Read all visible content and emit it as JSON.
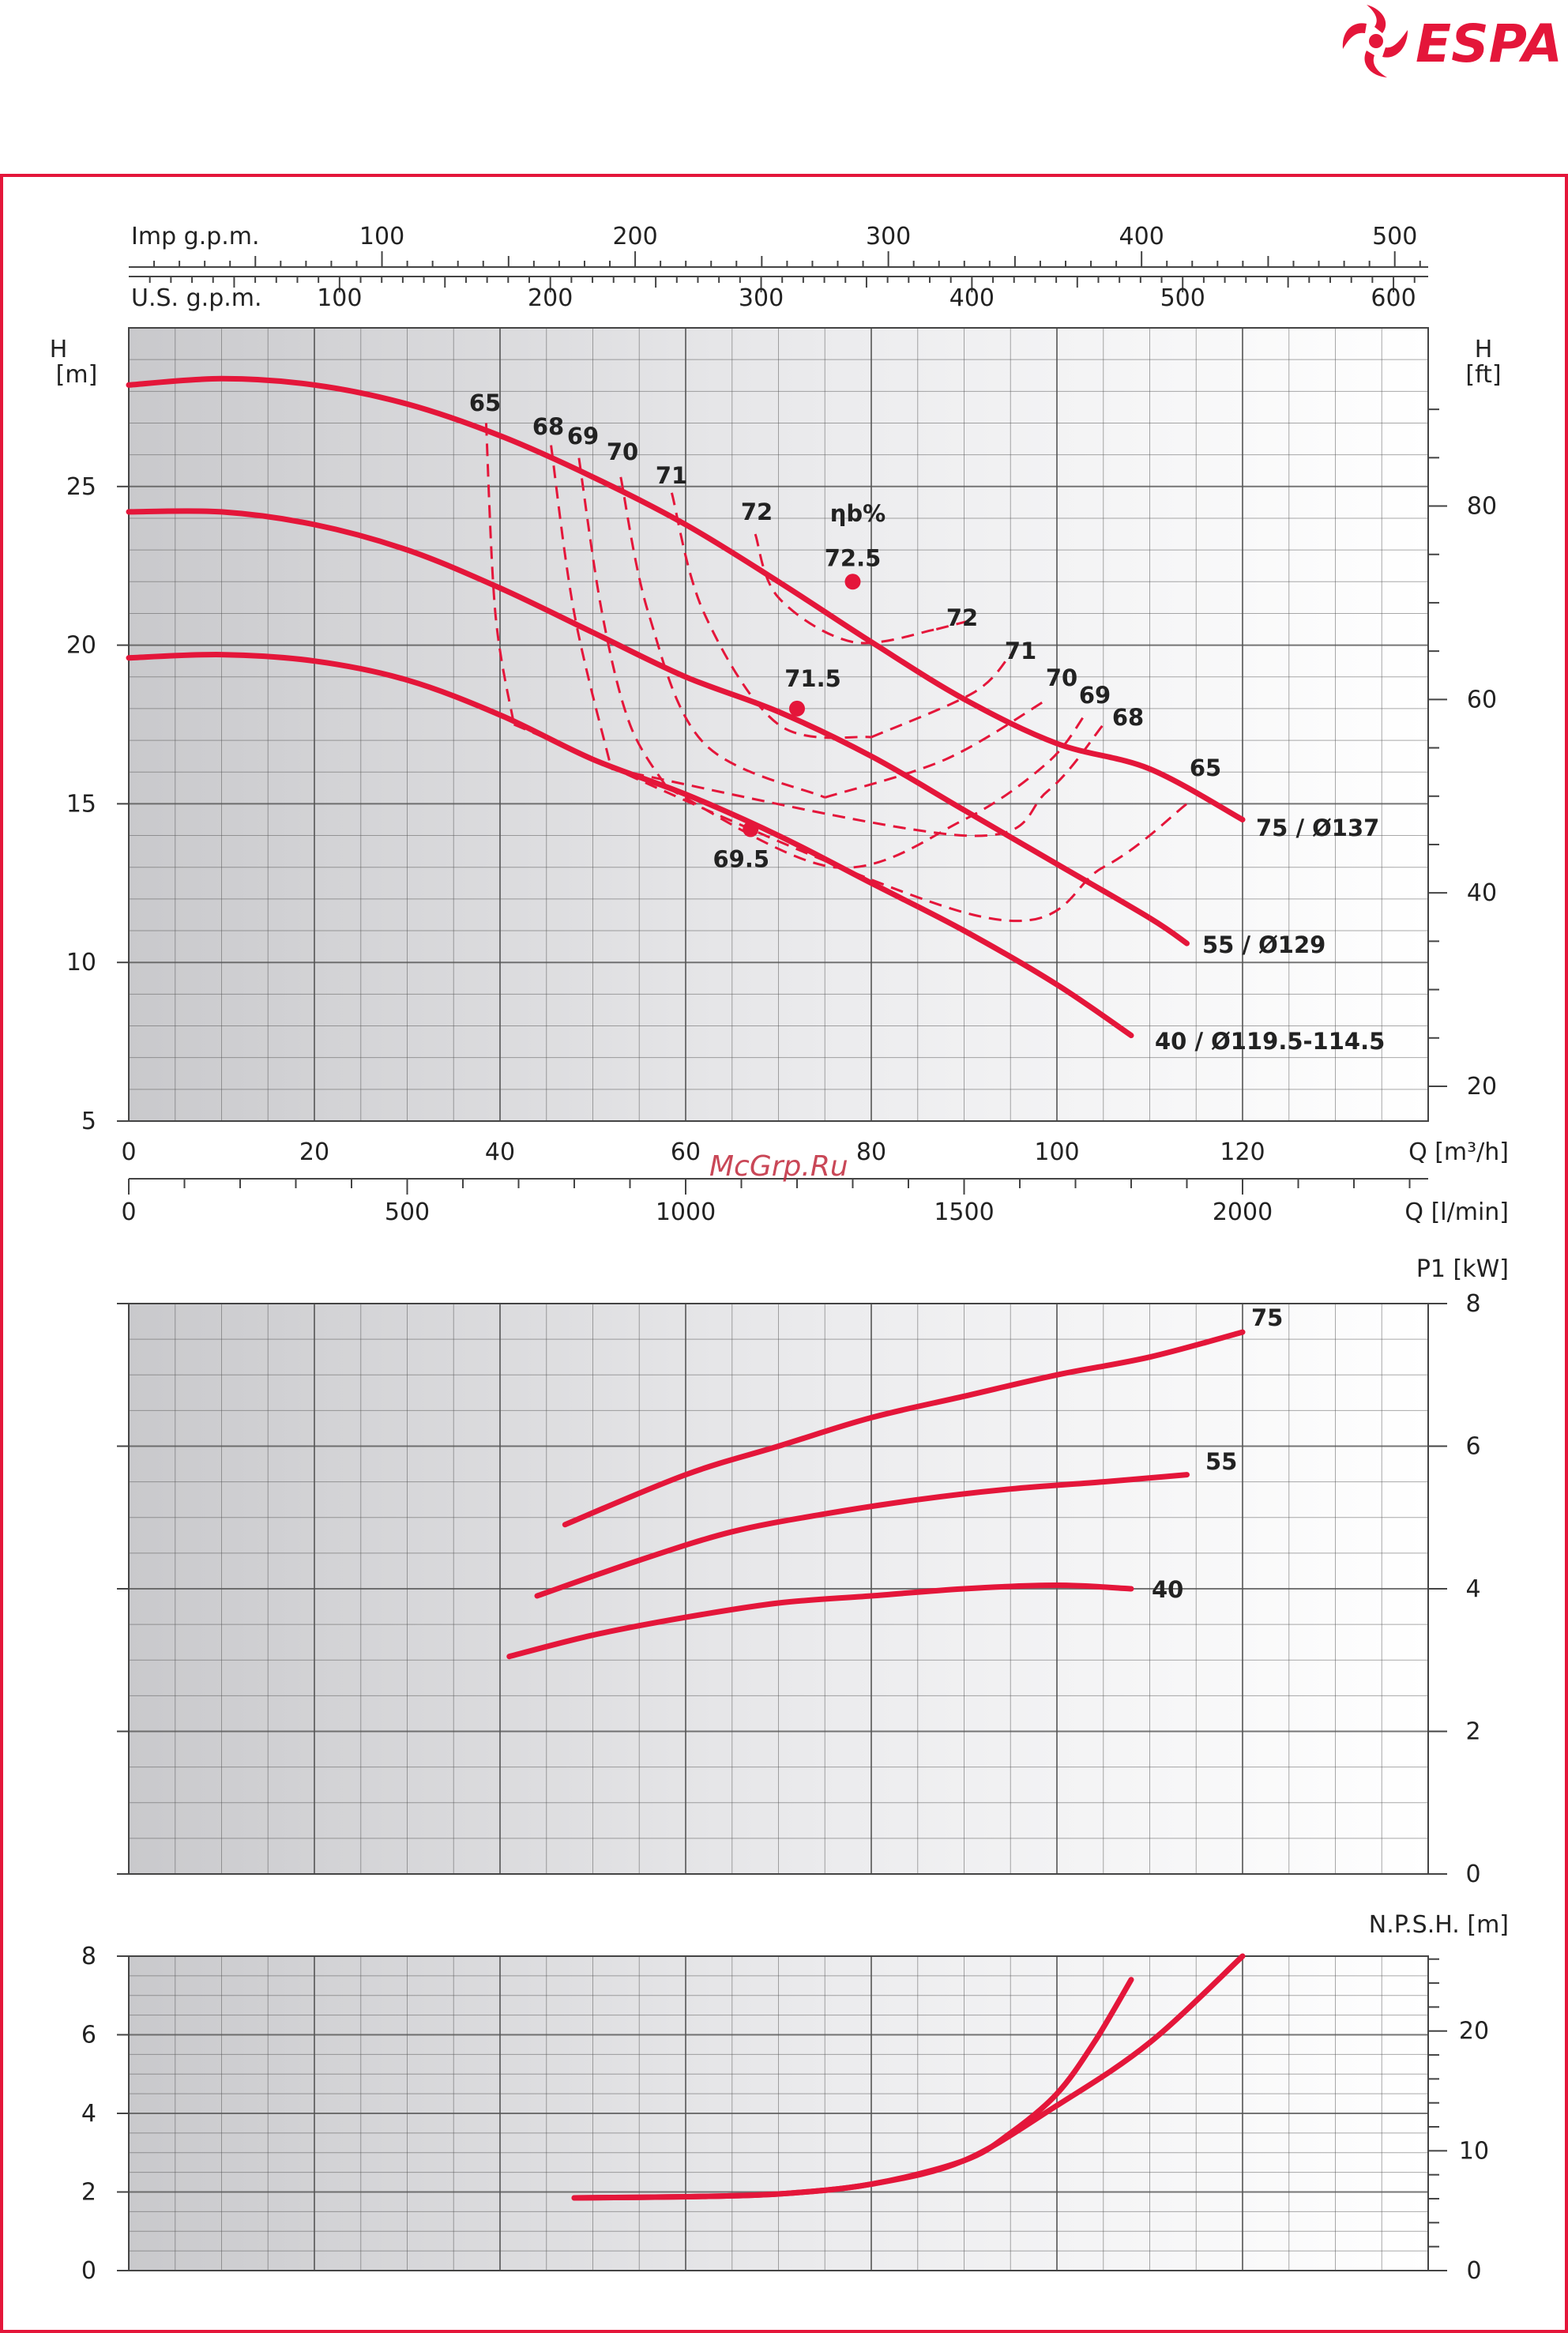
{
  "brand": {
    "name": "ESPA",
    "color": "#e4163a"
  },
  "watermark": "McGrp.Ru",
  "colors": {
    "curve": "#e4163a",
    "frame": "#e4163a",
    "grid": "#555555"
  },
  "chart_data": [
    {
      "type": "line",
      "title": "",
      "xlabel": "Q [m³/h]",
      "ylabel": "H [m]",
      "ylabel_right": "H [ft]",
      "efficiency_label": "ηb%",
      "xlim": [
        0,
        140
      ],
      "ylim": [
        5,
        30
      ],
      "grid": true,
      "x_ticks": [
        "0",
        "20",
        "40",
        "60",
        "80",
        "100",
        "120"
      ],
      "y_ticks": [
        "5",
        "10",
        "15",
        "20",
        "25"
      ],
      "y_right_ticks": [
        "20",
        "40",
        "60",
        "80"
      ],
      "secondary_axes": [
        {
          "label": "Imp g.p.m.",
          "ticks": [
            "100",
            "200",
            "300",
            "400",
            "500"
          ]
        },
        {
          "label": "U.S. g.p.m.",
          "ticks": [
            "100",
            "200",
            "300",
            "400",
            "500",
            "600"
          ]
        },
        {
          "label": "Q [l/min]",
          "ticks": [
            "0",
            "500",
            "1000",
            "1500",
            "2000"
          ]
        }
      ],
      "series": [
        {
          "name": "75 / Ø137",
          "x": [
            0,
            10,
            20,
            30,
            40,
            50,
            60,
            70,
            80,
            90,
            100,
            110,
            120
          ],
          "y": [
            28.2,
            28.4,
            28.2,
            27.6,
            26.6,
            25.3,
            23.8,
            22.0,
            20.1,
            18.3,
            16.9,
            16.1,
            14.5
          ]
        },
        {
          "name": "55 / Ø129",
          "x": [
            0,
            10,
            20,
            30,
            40,
            50,
            60,
            70,
            80,
            90,
            100,
            110,
            114
          ],
          "y": [
            24.2,
            24.2,
            23.8,
            23.0,
            21.8,
            20.4,
            19.0,
            17.9,
            16.5,
            14.8,
            13.1,
            11.4,
            10.6
          ]
        },
        {
          "name": "40 / Ø119.5-114.5",
          "x": [
            0,
            10,
            20,
            30,
            40,
            50,
            60,
            70,
            80,
            90,
            100,
            108
          ],
          "y": [
            19.6,
            19.7,
            19.5,
            18.9,
            17.8,
            16.4,
            15.3,
            14.0,
            12.5,
            11.0,
            9.3,
            7.7
          ]
        }
      ],
      "efficiency_points": [
        {
          "label": "72.5",
          "x": 78,
          "y": 22.0
        },
        {
          "label": "71.5",
          "x": 72,
          "y": 18.0
        },
        {
          "label": "69.5",
          "x": 67,
          "y": 14.2
        }
      ],
      "efficiency_contours": [
        {
          "label": "65",
          "points": [
            [
              38.5,
              27.0
            ],
            [
              39.5,
              21.0
            ],
            [
              41.5,
              17.5
            ]
          ],
          "points_right": [
            [
              91,
              11.5
            ],
            [
              105,
              13.0
            ],
            [
              114,
              15.0
            ]
          ]
        },
        {
          "label": "68",
          "points": [
            [
              45.5,
              26.3
            ],
            [
              48,
              21
            ],
            [
              52,
              16.1
            ]
          ],
          "points_right": [
            [
              90,
              14.0
            ],
            [
              99,
              15.4
            ],
            [
              105,
              17.5
            ]
          ]
        },
        {
          "label": "69",
          "points": [
            [
              48.5,
              25.9
            ],
            [
              51,
              21
            ],
            [
              54,
              17.5
            ],
            [
              58,
              15.5
            ]
          ],
          "points_right": [
            [
              76,
              13
            ],
            [
              90,
              14.5
            ],
            [
              99,
              16.3
            ],
            [
              103,
              17.8
            ]
          ]
        },
        {
          "label": "70",
          "points": [
            [
              53,
              25.3
            ],
            [
              56,
              21
            ],
            [
              62,
              16.9
            ],
            [
              75,
              15.2
            ]
          ],
          "points_right": [
            [
              88,
              16.4
            ],
            [
              99,
              18.3
            ]
          ]
        },
        {
          "label": "71",
          "points": [
            [
              58.5,
              24.8
            ],
            [
              62,
              21
            ],
            [
              70,
              17.5
            ],
            [
              80,
              17.1
            ]
          ],
          "points_right": [
            [
              91,
              18.5
            ],
            [
              95,
              19.7
            ]
          ]
        },
        {
          "label": "72",
          "points": [
            [
              67.5,
              23.5
            ],
            [
              70,
              21.5
            ],
            [
              78,
              20.1
            ],
            [
              87,
              20.5
            ]
          ],
          "points_right": [
            [
              91,
              20.8
            ]
          ]
        }
      ],
      "contour_labels": {
        "left": [
          "65",
          "68",
          "69",
          "70",
          "71",
          "72"
        ],
        "right": [
          "72",
          "71",
          "70",
          "69",
          "68",
          "65"
        ]
      }
    },
    {
      "type": "line",
      "title": "",
      "xlabel": "",
      "ylabel": "P1 [kW]",
      "xlim": [
        0,
        140
      ],
      "ylim": [
        0,
        8
      ],
      "grid": true,
      "y_ticks": [
        "0",
        "2",
        "4",
        "6",
        "8"
      ],
      "series": [
        {
          "name": "75",
          "x": [
            47,
            60,
            70,
            80,
            90,
            100,
            110,
            120
          ],
          "y": [
            4.9,
            5.6,
            6.0,
            6.4,
            6.7,
            7.0,
            7.25,
            7.6
          ]
        },
        {
          "name": "55",
          "x": [
            44,
            55,
            65,
            75,
            85,
            95,
            105,
            114
          ],
          "y": [
            3.9,
            4.4,
            4.8,
            5.05,
            5.25,
            5.4,
            5.5,
            5.6
          ]
        },
        {
          "name": "40",
          "x": [
            41,
            50,
            60,
            70,
            80,
            90,
            100,
            108
          ],
          "y": [
            3.05,
            3.35,
            3.6,
            3.8,
            3.9,
            4.0,
            4.05,
            4.0
          ]
        }
      ]
    },
    {
      "type": "line",
      "title": "",
      "xlabel": "",
      "ylabel": "N.P.S.H. [m]",
      "xlim": [
        0,
        140
      ],
      "ylim": [
        0,
        8
      ],
      "grid": true,
      "y_ticks": [
        "0",
        "2",
        "4",
        "6",
        "8"
      ],
      "y_right_ticks": [
        "0",
        "10",
        "20"
      ],
      "series": [
        {
          "name": "",
          "x": [
            48,
            60,
            70,
            80,
            90,
            95,
            100,
            104,
            108
          ],
          "y": [
            1.85,
            1.88,
            1.95,
            2.2,
            2.8,
            3.5,
            4.5,
            5.8,
            7.4
          ]
        },
        {
          "name": "",
          "x": [
            48,
            60,
            70,
            80,
            90,
            100,
            110,
            120
          ],
          "y": [
            1.85,
            1.88,
            1.95,
            2.2,
            2.8,
            4.2,
            5.8,
            8.0
          ]
        }
      ]
    }
  ]
}
